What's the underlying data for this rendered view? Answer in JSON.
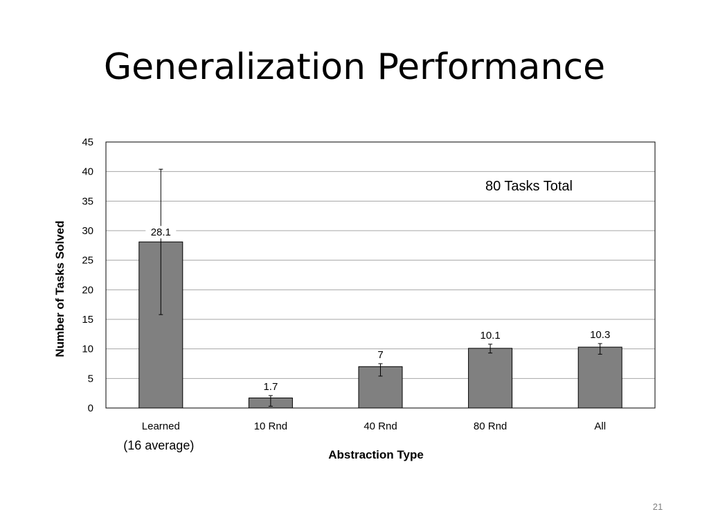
{
  "slide": {
    "title": "Generalization Performance",
    "page_number": "21"
  },
  "chart_data": {
    "type": "bar",
    "categories": [
      "Learned",
      "10 Rnd",
      "40 Rnd",
      "80 Rnd",
      "All"
    ],
    "category_sublabels": [
      "(16 average)",
      "",
      "",
      "",
      ""
    ],
    "values": [
      28.1,
      1.7,
      7,
      10.1,
      10.3
    ],
    "data_labels": [
      "28.1",
      "1.7",
      "7",
      "10.1",
      "10.3"
    ],
    "error_bars": [
      {
        "low": 15.8,
        "high": 40.4
      },
      {
        "low": 0.3,
        "high": 2.1
      },
      {
        "low": 5.4,
        "high": 7.5
      },
      {
        "low": 9.3,
        "high": 10.8
      },
      {
        "low": 9.1,
        "high": 10.9
      }
    ],
    "title": "",
    "xlabel": "Abstraction Type",
    "ylabel": "Number of Tasks Solved",
    "ylim": [
      0,
      45
    ],
    "yticks": [
      0,
      5,
      10,
      15,
      20,
      25,
      30,
      35,
      40,
      45
    ],
    "grid": true,
    "annotation": "80 Tasks Total",
    "colors": {
      "bar": "#808080",
      "bar_border": "#000000",
      "grid": "#a6a6a6",
      "axis": "#000000"
    }
  }
}
